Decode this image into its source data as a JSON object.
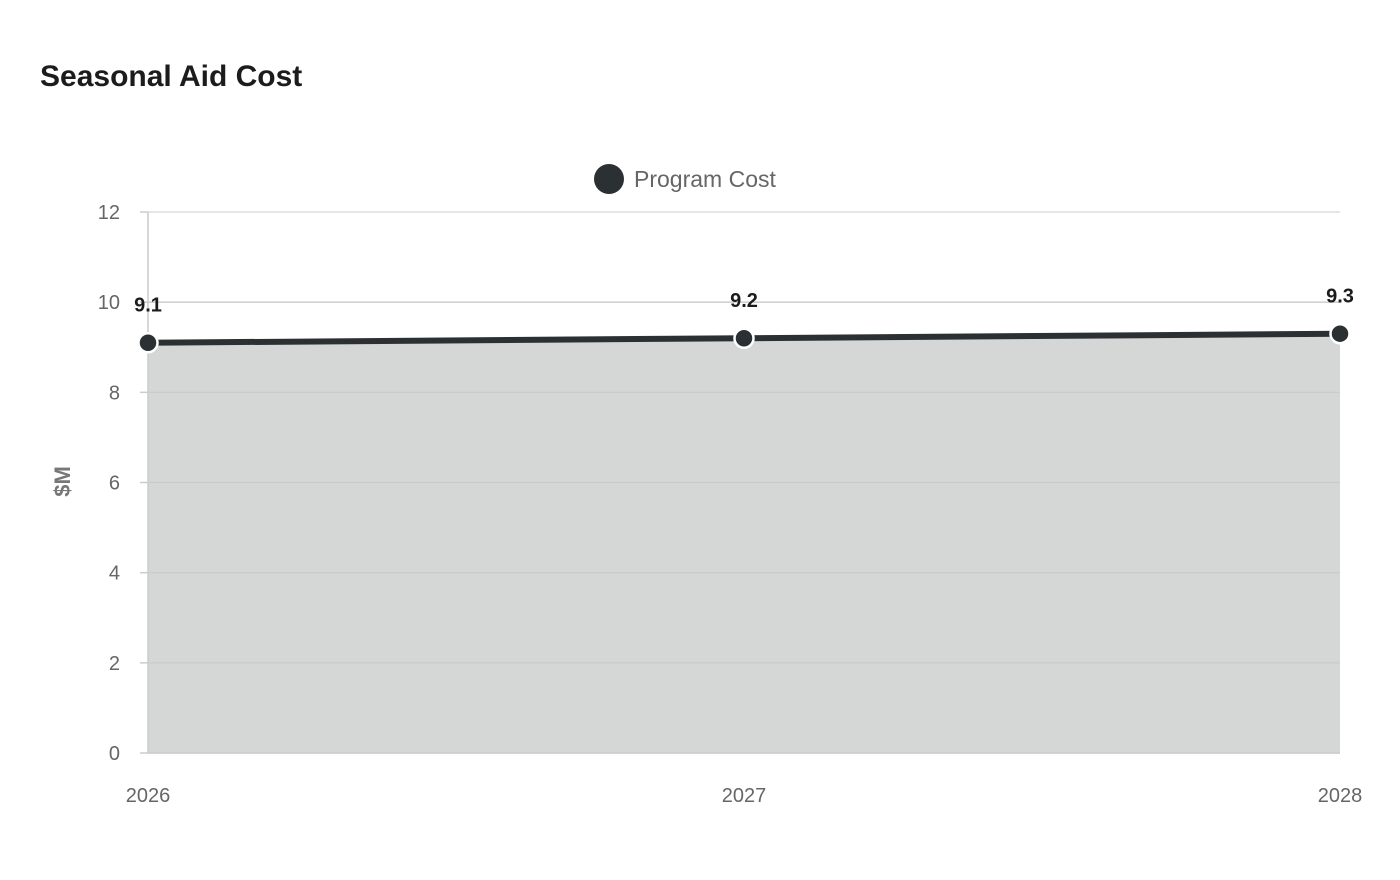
{
  "chart_data": {
    "type": "area",
    "title": "Seasonal Aid Cost",
    "xlabel": "",
    "ylabel": "$M",
    "categories": [
      "2026",
      "2027",
      "2028"
    ],
    "series": [
      {
        "name": "Program Cost",
        "values": [
          9.1,
          9.2,
          9.3
        ]
      }
    ],
    "data_labels": [
      "9.1",
      "9.2",
      "9.3"
    ],
    "ylim": [
      0,
      12
    ],
    "yticks": [
      "0",
      "2",
      "4",
      "6",
      "8",
      "10",
      "12"
    ],
    "grid": true,
    "legend_position": "top-center",
    "colors": {
      "line": "#2b3033",
      "fill": "#d5d7d7",
      "grid": "#dddddd",
      "axis": "#cccccc"
    }
  }
}
